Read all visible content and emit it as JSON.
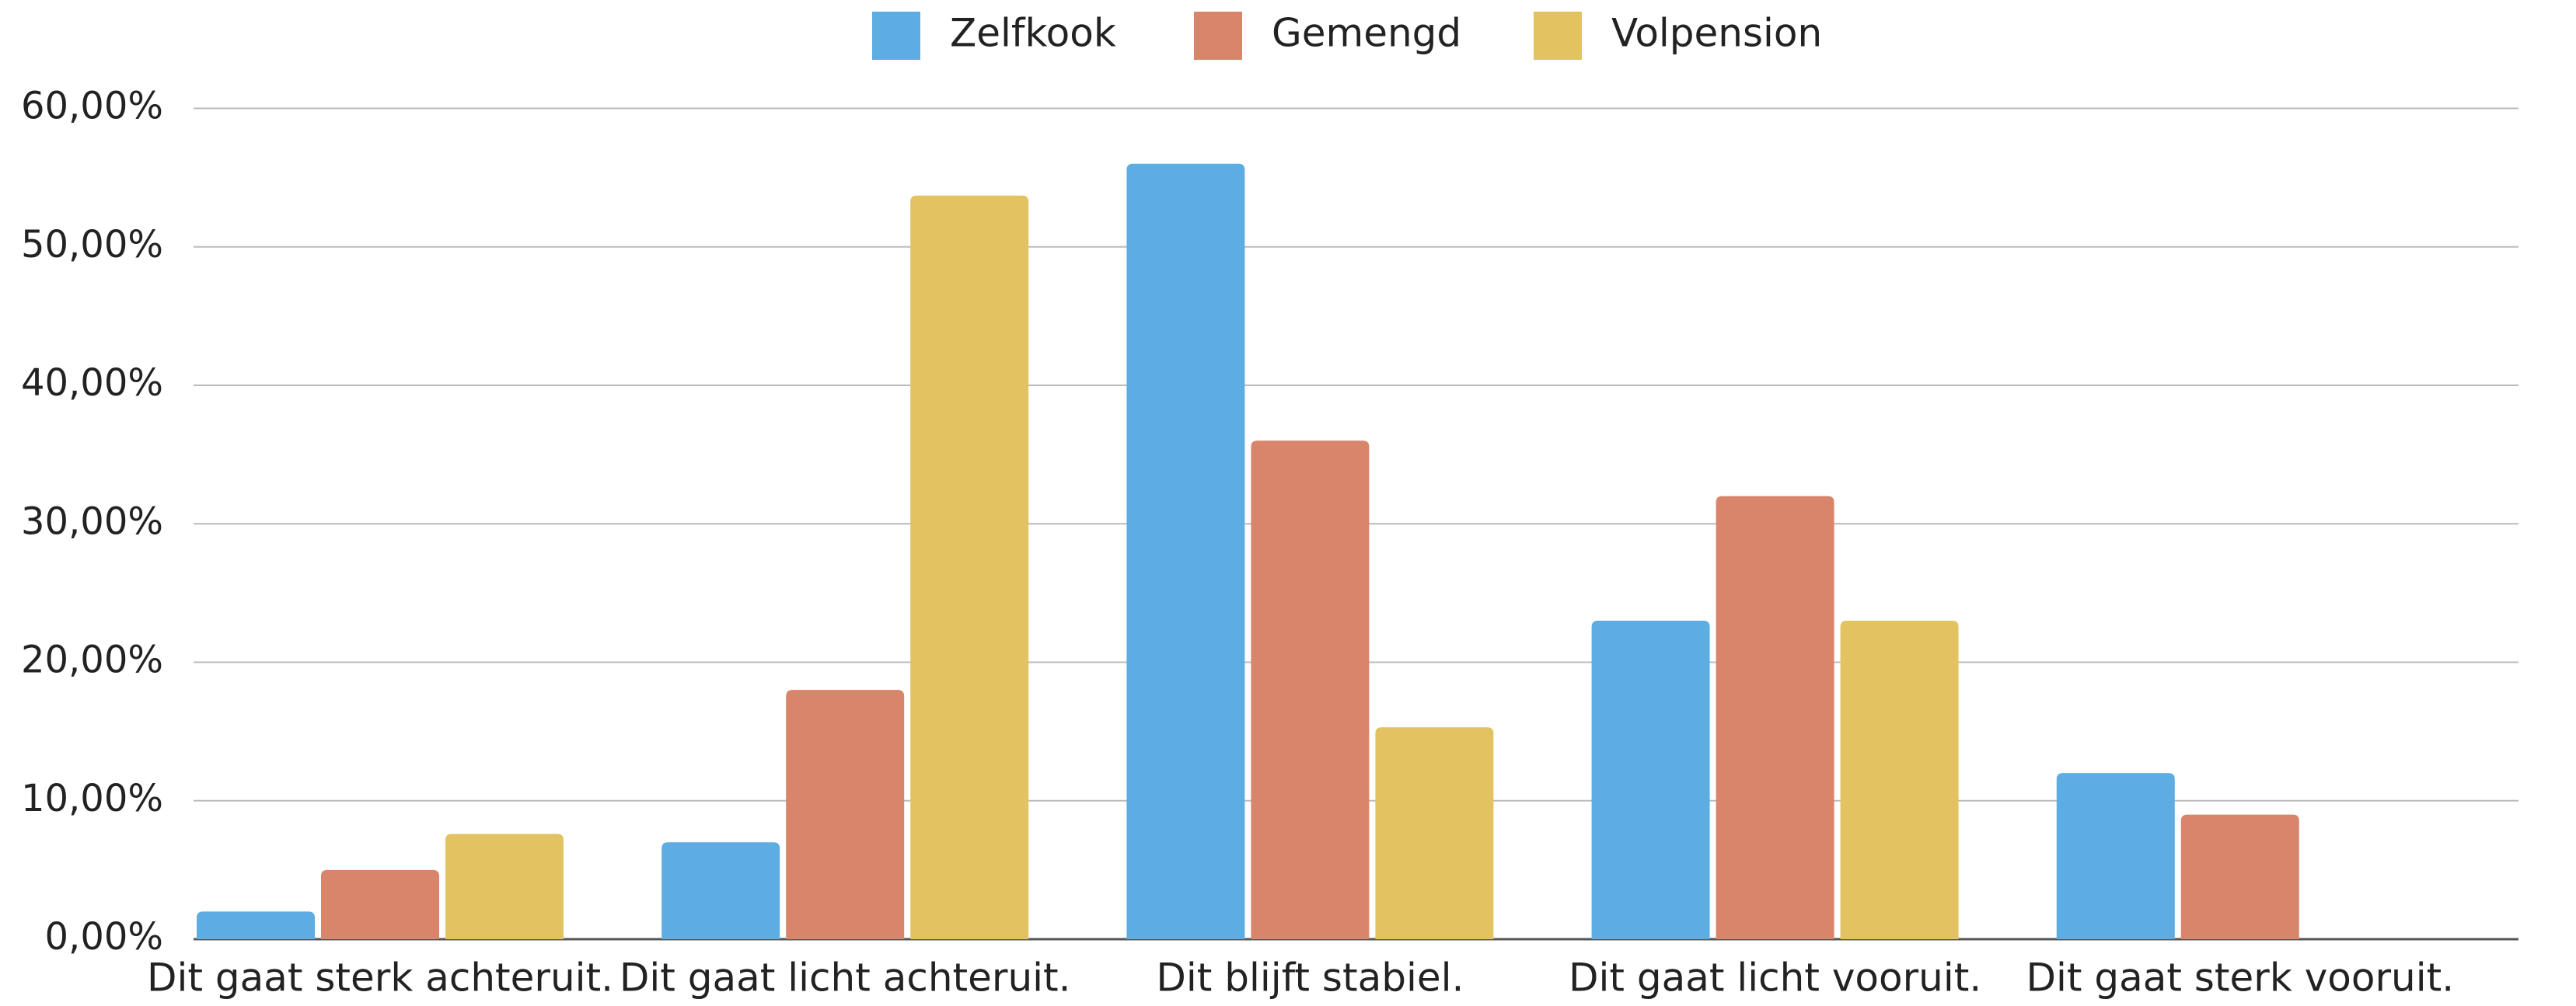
{
  "chart_data": {
    "type": "bar",
    "categories": [
      "Dit gaat sterk achteruit.",
      "Dit gaat licht achteruit.",
      "Dit blijft stabiel.",
      "Dit gaat licht vooruit.",
      "Dit gaat sterk vooruit."
    ],
    "series": [
      {
        "name": "Zelfkook",
        "color": "#5dade2",
        "values": [
          2,
          7,
          56,
          23,
          12
        ]
      },
      {
        "name": "Gemengd",
        "color": "#d9856b",
        "values": [
          5,
          18,
          36,
          32,
          9
        ]
      },
      {
        "name": "Volpension",
        "color": "#e3c261",
        "values": [
          7.6,
          53.7,
          15.3,
          23,
          0
        ]
      }
    ],
    "ylim": [
      0,
      60
    ],
    "yticks": [
      {
        "value": 0,
        "label": "0,00%"
      },
      {
        "value": 10,
        "label": "10,00%"
      },
      {
        "value": 20,
        "label": "20,00%"
      },
      {
        "value": 30,
        "label": "30,00%"
      },
      {
        "value": 40,
        "label": "40,00%"
      },
      {
        "value": 50,
        "label": "50,00%"
      },
      {
        "value": 60,
        "label": "60,00%"
      }
    ],
    "grid": true,
    "legend": "top"
  }
}
